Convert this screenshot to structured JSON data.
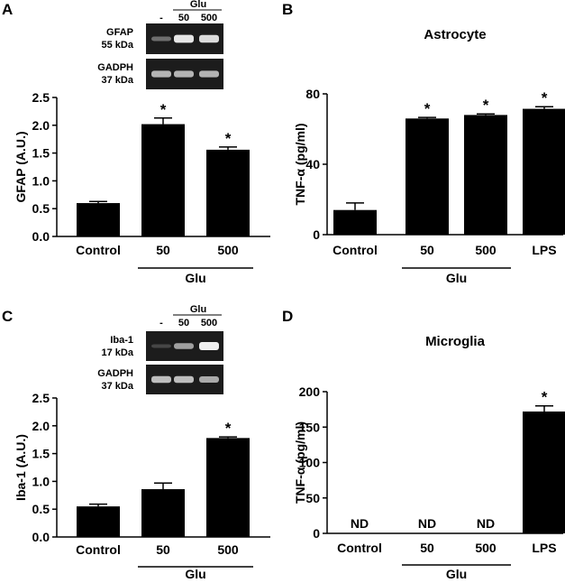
{
  "panels": [
    {
      "letter": "A",
      "blot": {
        "group": "Glu",
        "lanes": [
          "-",
          "50",
          "500"
        ],
        "rows": [
          {
            "label": "GFAP",
            "kda": "55 kDa",
            "intensity": [
              0.35,
              0.95,
              0.9
            ]
          },
          {
            "label": "GADPH",
            "kda": "37 kDa",
            "intensity": [
              0.7,
              0.7,
              0.7
            ]
          }
        ]
      }
    },
    {
      "letter": "B"
    },
    {
      "letter": "C",
      "blot": {
        "group": "Glu",
        "lanes": [
          "-",
          "50",
          "500"
        ],
        "rows": [
          {
            "label": "Iba-1",
            "kda": "17 kDa",
            "intensity": [
              0.15,
              0.6,
              1.0
            ]
          },
          {
            "label": "GADPH",
            "kda": "37 kDa",
            "intensity": [
              0.75,
              0.75,
              0.65
            ]
          }
        ]
      }
    },
    {
      "letter": "D"
    }
  ],
  "chart_data": [
    {
      "panel": "A",
      "type": "bar",
      "title": "",
      "categories": [
        "Control",
        "50",
        "500"
      ],
      "values": [
        0.6,
        2.02,
        1.56
      ],
      "errors": [
        0.03,
        0.11,
        0.05
      ],
      "significance": [
        "",
        "*",
        "*"
      ],
      "group_label": "Glu",
      "group_span": [
        1,
        2
      ],
      "ylabel": "GFAP (A.U.)",
      "ylim": [
        0,
        2.5
      ],
      "yticks": [
        "0.0",
        "0.5",
        "1.0",
        "1.5",
        "2.0",
        "2.5"
      ],
      "ytick_values": [
        0,
        0.5,
        1.0,
        1.5,
        2.0,
        2.5
      ],
      "legend": "none",
      "grid": false
    },
    {
      "panel": "B",
      "type": "bar",
      "title": "Astrocyte",
      "categories": [
        "Control",
        "50",
        "500",
        "LPS"
      ],
      "values": [
        14,
        66,
        68,
        71.5
      ],
      "errors": [
        4,
        0.6,
        0.6,
        1.2
      ],
      "significance": [
        "",
        "*",
        "*",
        "*"
      ],
      "group_label": "Glu",
      "group_span": [
        1,
        2
      ],
      "ylabel": "TNF-α (pg/ml)",
      "ylim": [
        0,
        80
      ],
      "yticks": [
        "0",
        "40",
        "80"
      ],
      "ytick_values": [
        0,
        40,
        80
      ],
      "legend": "none",
      "grid": false
    },
    {
      "panel": "C",
      "type": "bar",
      "title": "",
      "categories": [
        "Control",
        "50",
        "500"
      ],
      "values": [
        0.55,
        0.86,
        1.78
      ],
      "errors": [
        0.04,
        0.11,
        0.02
      ],
      "significance": [
        "",
        "",
        "*"
      ],
      "group_label": "Glu",
      "group_span": [
        1,
        2
      ],
      "ylabel": "Iba-1 (A.U.)",
      "ylim": [
        0,
        2.5
      ],
      "yticks": [
        "0.0",
        "0.5",
        "1.0",
        "1.5",
        "2.0",
        "2.5"
      ],
      "ytick_values": [
        0,
        0.5,
        1.0,
        1.5,
        2.0,
        2.5
      ],
      "legend": "none",
      "grid": false
    },
    {
      "panel": "D",
      "type": "bar",
      "title": "Microglia",
      "categories": [
        "Control",
        "50",
        "500",
        "LPS"
      ],
      "values": [
        null,
        null,
        null,
        172
      ],
      "errors": [
        0,
        0,
        0,
        8
      ],
      "value_text": [
        "ND",
        "ND",
        "ND",
        ""
      ],
      "significance": [
        "",
        "",
        "",
        "*"
      ],
      "group_label": "Glu",
      "group_span": [
        1,
        2
      ],
      "ylabel": "TNF-α (pg/ml)",
      "ylim": [
        0,
        200
      ],
      "yticks": [
        "0",
        "50",
        "100",
        "150",
        "200"
      ],
      "ytick_values": [
        0,
        50,
        100,
        150,
        200
      ],
      "legend": "none",
      "grid": false
    }
  ]
}
